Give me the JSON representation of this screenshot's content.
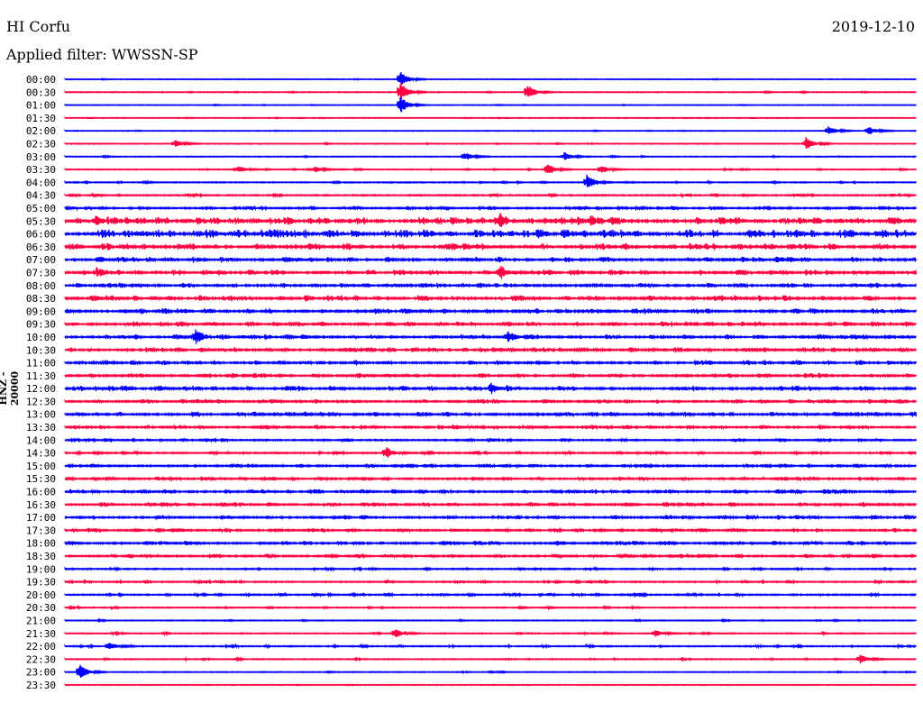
{
  "header": {
    "station": "HI Corfu",
    "filter": "Applied filter: WWSSN-SP",
    "date": "2019-12-10"
  },
  "chart_data": {
    "type": "line",
    "title": "HI Corfu",
    "subtitle": "Applied filter: WWSSN-SP",
    "ylabel": "HNZ - 20000",
    "xlabel": "",
    "minutes_per_line": 30,
    "colors": [
      "#0000ff",
      "#ff0040"
    ],
    "rows": [
      "00:00",
      "00:30",
      "01:00",
      "01:30",
      "02:00",
      "02:30",
      "03:00",
      "03:30",
      "04:00",
      "04:30",
      "05:00",
      "05:30",
      "06:00",
      "06:30",
      "07:00",
      "07:30",
      "08:00",
      "08:30",
      "09:00",
      "09:30",
      "10:00",
      "10:30",
      "11:00",
      "11:30",
      "12:00",
      "12:30",
      "13:00",
      "13:30",
      "14:00",
      "14:30",
      "15:00",
      "15:30",
      "16:00",
      "16:30",
      "17:00",
      "17:30",
      "18:00",
      "18:30",
      "19:00",
      "19:30",
      "20:00",
      "20:30",
      "21:00",
      "21:30",
      "22:00",
      "22:30",
      "23:00",
      "23:30"
    ],
    "noise_level": [
      0.05,
      0.1,
      0.05,
      0.05,
      0.05,
      0.08,
      0.1,
      0.1,
      0.15,
      0.25,
      0.35,
      0.7,
      0.8,
      0.6,
      0.5,
      0.5,
      0.45,
      0.55,
      0.5,
      0.45,
      0.45,
      0.45,
      0.45,
      0.45,
      0.5,
      0.4,
      0.45,
      0.4,
      0.3,
      0.3,
      0.35,
      0.35,
      0.4,
      0.4,
      0.4,
      0.35,
      0.4,
      0.35,
      0.25,
      0.25,
      0.25,
      0.15,
      0.12,
      0.15,
      0.2,
      0.15,
      0.1,
      0.05
    ],
    "events": [
      {
        "row": 0,
        "minute": 11.8,
        "amp": 10
      },
      {
        "row": 1,
        "minute": 11.8,
        "amp": 14
      },
      {
        "row": 1,
        "minute": 16.3,
        "amp": 10
      },
      {
        "row": 2,
        "minute": 11.8,
        "amp": 12
      },
      {
        "row": 4,
        "minute": 26.9,
        "amp": 6
      },
      {
        "row": 4,
        "minute": 28.3,
        "amp": 6
      },
      {
        "row": 5,
        "minute": 3.85,
        "amp": 6
      },
      {
        "row": 5,
        "minute": 26.1,
        "amp": 8
      },
      {
        "row": 6,
        "minute": 14.05,
        "amp": 6
      },
      {
        "row": 6,
        "minute": 17.6,
        "amp": 5
      },
      {
        "row": 7,
        "minute": 17.0,
        "amp": 8
      },
      {
        "row": 7,
        "minute": 18.9,
        "amp": 5
      },
      {
        "row": 7,
        "minute": 6.1,
        "amp": 4
      },
      {
        "row": 7,
        "minute": 8.8,
        "amp": 4
      },
      {
        "row": 8,
        "minute": 18.4,
        "amp": 10
      },
      {
        "row": 11,
        "minute": 1.05,
        "amp": 7
      },
      {
        "row": 11,
        "minute": 15.3,
        "amp": 7
      },
      {
        "row": 11,
        "minute": 18.5,
        "amp": 8
      },
      {
        "row": 15,
        "minute": 15.3,
        "amp": 8
      },
      {
        "row": 15,
        "minute": 1.1,
        "amp": 6
      },
      {
        "row": 20,
        "minute": 4.6,
        "amp": 8
      },
      {
        "row": 20,
        "minute": 15.6,
        "amp": 8
      },
      {
        "row": 24,
        "minute": 15.0,
        "amp": 7
      },
      {
        "row": 29,
        "minute": 11.3,
        "amp": 8
      },
      {
        "row": 43,
        "minute": 11.6,
        "amp": 6
      },
      {
        "row": 43,
        "minute": 20.8,
        "amp": 5
      },
      {
        "row": 44,
        "minute": 1.5,
        "amp": 5
      },
      {
        "row": 45,
        "minute": 28.0,
        "amp": 7
      },
      {
        "row": 46,
        "minute": 0.5,
        "amp": 10
      }
    ]
  }
}
